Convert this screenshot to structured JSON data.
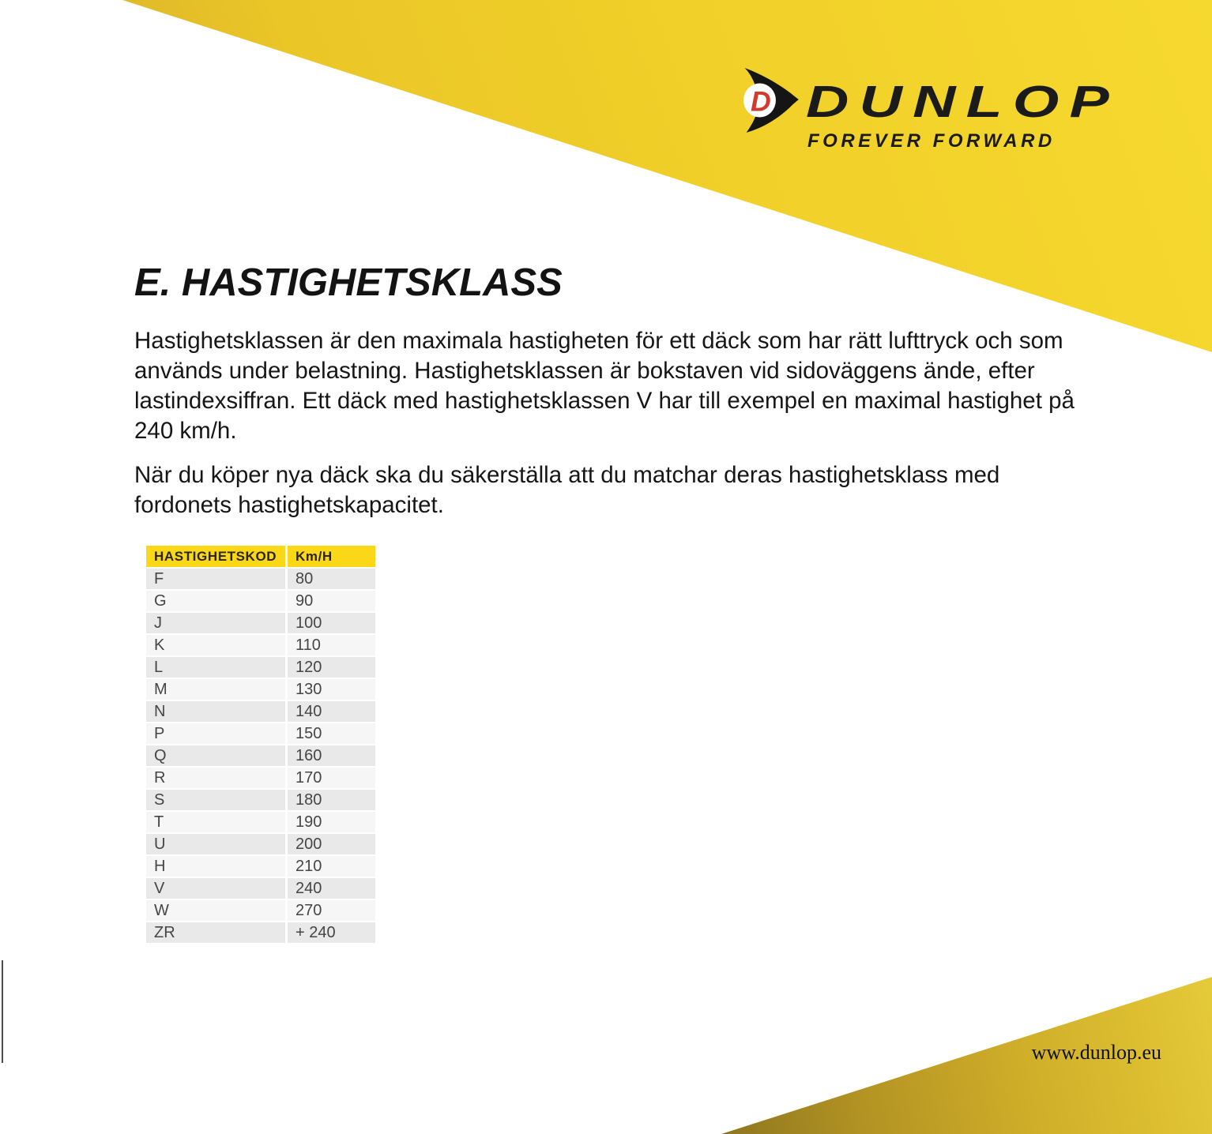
{
  "brand": {
    "name": "DUNLOP",
    "tagline": "FOREVER FORWARD",
    "icon_letter": "D",
    "colors": {
      "banner_yellow": "#f1d029",
      "table_header_yellow": "#fad717",
      "logo_red": "#d23a2e",
      "logo_black": "#1b1b1b"
    }
  },
  "heading": "E. HASTIGHETSKLASS",
  "paragraphs": {
    "p1": "Hastighetsklassen är den maximala hastigheten för ett däck som har rätt lufttryck och som används under belastning. Hastighetsklassen är bokstaven vid sidoväggens ände, efter lastindexsiffran. Ett däck med hastighetsklassen V har till exempel en maximal hastighet på 240 km/h.",
    "p2": "När du köper nya däck ska du säkerställa att du matchar deras hastighetsklass med fordonets hastighetskapacitet."
  },
  "table": {
    "headers": [
      "HASTIGHETSKOD",
      "Km/H"
    ],
    "rows": [
      {
        "code": "F",
        "kmh": "80"
      },
      {
        "code": "G",
        "kmh": "90"
      },
      {
        "code": "J",
        "kmh": "100"
      },
      {
        "code": "K",
        "kmh": "110"
      },
      {
        "code": "L",
        "kmh": "120"
      },
      {
        "code": "M",
        "kmh": "130"
      },
      {
        "code": "N",
        "kmh": "140"
      },
      {
        "code": "P",
        "kmh": "150"
      },
      {
        "code": "Q",
        "kmh": "160"
      },
      {
        "code": "R",
        "kmh": "170"
      },
      {
        "code": "S",
        "kmh": "180"
      },
      {
        "code": "T",
        "kmh": "190"
      },
      {
        "code": "U",
        "kmh": "200"
      },
      {
        "code": "H",
        "kmh": "210"
      },
      {
        "code": "V",
        "kmh": "240"
      },
      {
        "code": "W",
        "kmh": "270"
      },
      {
        "code": "ZR",
        "kmh": "+ 240"
      }
    ]
  },
  "footer": {
    "url": "www.dunlop.eu"
  }
}
